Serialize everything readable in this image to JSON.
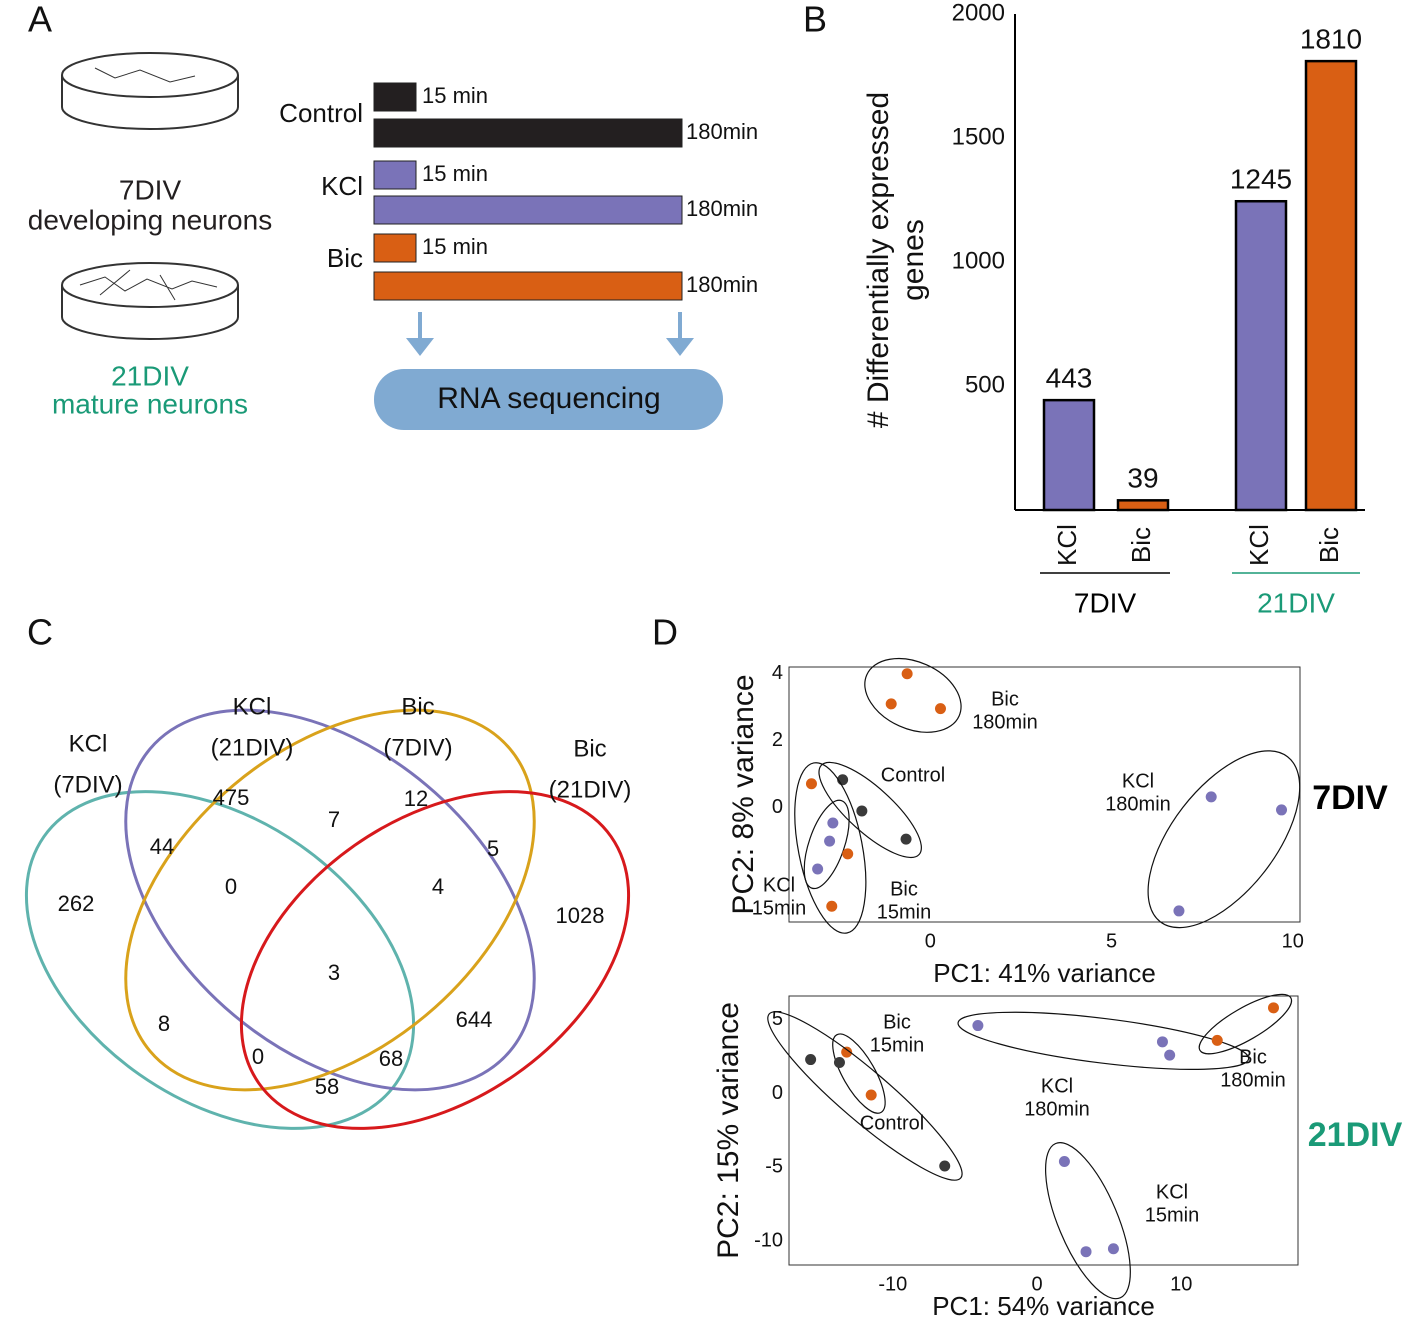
{
  "panel_labels": [
    "A",
    "B",
    "C",
    "D"
  ],
  "diagram": {
    "dishes": [
      {
        "line1": "7DIV",
        "line2": "developing neurons",
        "color": "#231f20"
      },
      {
        "line1": "21DIV",
        "line2": "mature neurons",
        "color": "#1a9a77"
      }
    ],
    "conditions": [
      {
        "name": "Control",
        "color": "#231f20"
      },
      {
        "name": "KCl",
        "color": "#7a73b8"
      },
      {
        "name": "Bic",
        "color": "#d95f14"
      }
    ],
    "short_label": "15 min",
    "long_label": "180min",
    "output": "RNA sequencing",
    "output_color": "#80aad2"
  },
  "chart_data": [
    {
      "type": "bar",
      "ylabel": [
        "# Differentially expressed",
        "genes"
      ],
      "categories": [
        "KCl",
        "Bic",
        "KCl",
        "Bic"
      ],
      "values": [
        443,
        39,
        1245,
        1810
      ],
      "colors": [
        "#7a73b8",
        "#d95f14",
        "#7a73b8",
        "#d95f14"
      ],
      "groups": [
        {
          "name": "7DIV",
          "color": "#000000"
        },
        {
          "name": "21DIV",
          "color": "#1a9a77"
        }
      ],
      "ylim": [
        0,
        2000
      ],
      "yticks": [
        500,
        1000,
        1500,
        2000
      ]
    },
    {
      "type": "scatter",
      "xlabel": "PC1: 41% variance",
      "ylabel": "PC2: 8% variance",
      "side_label": "7DIV",
      "side_color": "#000000",
      "xlim": [
        -3.9,
        10.2
      ],
      "ylim": [
        -3.4,
        4.2
      ],
      "xticks": [
        0,
        5,
        10
      ],
      "yticks": [
        0,
        2,
        4
      ],
      "series": [
        {
          "label": [
            "Bic",
            "180min"
          ],
          "color": "#d95f14",
          "x": [
            -0.64,
            -1.08,
            0.28
          ],
          "y": [
            4.0,
            3.1,
            2.96
          ]
        },
        {
          "label": [
            "Control"
          ],
          "color": "#3a3a3a",
          "x": [
            -2.42,
            -1.89,
            -0.67
          ],
          "y": [
            0.84,
            -0.09,
            -0.93
          ]
        },
        {
          "label": [
            "KCl",
            "180min"
          ],
          "color": "#7a73b8",
          "x": [
            7.75,
            9.69,
            6.86
          ],
          "y": [
            0.33,
            -0.06,
            -3.07
          ]
        },
        {
          "label": [
            "KCl",
            "15min"
          ],
          "color": "#7a73b8",
          "x": [
            -2.69,
            -2.78,
            -3.11
          ],
          "y": [
            -0.45,
            -0.99,
            -1.82
          ]
        },
        {
          "label": [
            "Bic",
            "15min"
          ],
          "color": "#d95f14",
          "x": [
            -3.28,
            -2.28,
            -2.72
          ],
          "y": [
            0.72,
            -1.37,
            -2.93
          ]
        }
      ]
    },
    {
      "type": "scatter",
      "xlabel": "PC1: 54% variance",
      "ylabel": "PC2: 15% variance",
      "side_label": "21DIV",
      "side_color": "#1a9a77",
      "xlim": [
        -17.2,
        18.1
      ],
      "ylim": [
        -11.6,
        6.6
      ],
      "xticks": [
        -10,
        0,
        10
      ],
      "yticks": [
        -10,
        -5,
        0,
        5
      ],
      "series": [
        {
          "label": [
            "Bic",
            "15min"
          ],
          "color": "#d95f14",
          "x": [
            -13.2,
            -11.5
          ],
          "y": [
            2.8,
            -0.1
          ]
        },
        {
          "label": [
            "KCl",
            "180min"
          ],
          "color": "#7a73b8",
          "x": [
            -4.1,
            8.7,
            9.2
          ],
          "y": [
            4.6,
            3.5,
            2.6
          ]
        },
        {
          "label": [
            "Bic",
            "180min"
          ],
          "color": "#d95f14",
          "x": [
            12.5,
            16.4
          ],
          "y": [
            3.6,
            5.8
          ]
        },
        {
          "label": [
            "Control"
          ],
          "color": "#3a3a3a",
          "x": [
            -15.7,
            -13.7,
            -6.4
          ],
          "y": [
            2.3,
            2.1,
            -4.9
          ]
        },
        {
          "label": [
            "KCl",
            "15min"
          ],
          "color": "#7a73b8",
          "x": [
            1.9,
            3.4,
            5.3
          ],
          "y": [
            -4.6,
            -10.7,
            -10.5
          ]
        }
      ]
    }
  ],
  "venn": {
    "sets": [
      {
        "label": [
          "KCl",
          "(7DIV)"
        ],
        "color": "#5fb3ad"
      },
      {
        "label": [
          "KCl",
          "(21DIV)"
        ],
        "color": "#7a73b8"
      },
      {
        "label": [
          "Bic",
          "(7DIV)"
        ],
        "color": "#d9a21b"
      },
      {
        "label": [
          "Bic",
          "(21DIV)"
        ],
        "color": "#d7191c"
      }
    ],
    "regions": [
      262,
      44,
      475,
      7,
      12,
      5,
      0,
      4,
      1028,
      3,
      8,
      644,
      0,
      68,
      58
    ]
  }
}
